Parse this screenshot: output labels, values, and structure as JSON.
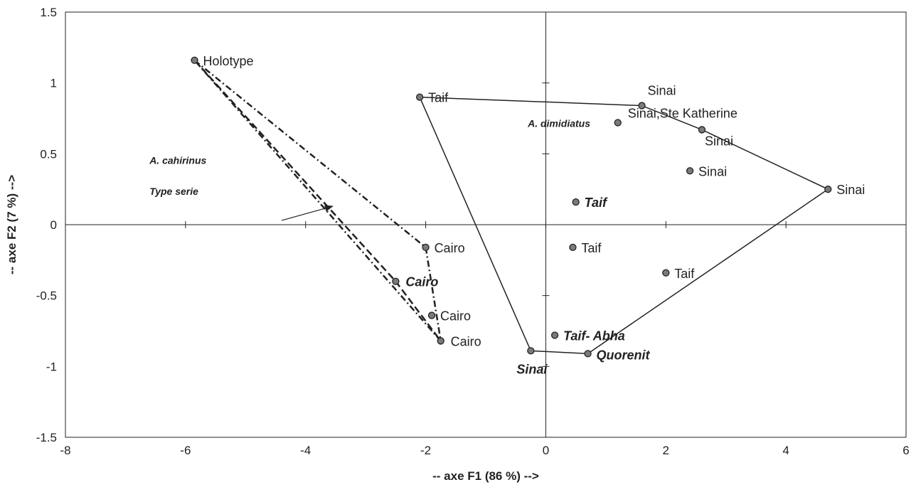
{
  "chart_data": {
    "type": "scatter",
    "xlabel": "-- axe F1 (86 %) -->",
    "ylabel": "-- axe F2 (7 %) -->",
    "xlim": [
      -8,
      6
    ],
    "ylim": [
      -1.5,
      1.5
    ],
    "xticks": [
      "-8",
      "-6",
      "-4",
      "-2",
      "0",
      "2",
      "4",
      "6"
    ],
    "yticks": [
      "1.5",
      "1",
      "0.5",
      "0",
      "-0.5",
      "-1",
      "-1.5"
    ],
    "points": [
      {
        "x": -5.85,
        "y": 1.16,
        "label": "Holotype",
        "style": "normal"
      },
      {
        "x": -2.1,
        "y": 0.9,
        "label": "Taif",
        "style": "normal"
      },
      {
        "x": 1.6,
        "y": 0.84,
        "label": "Sinai",
        "style": "normal"
      },
      {
        "x": 1.2,
        "y": 0.72,
        "label": "Sinai,Ste Katherine",
        "style": "normal"
      },
      {
        "x": 2.6,
        "y": 0.67,
        "label": "Sinai",
        "style": "normal"
      },
      {
        "x": 2.4,
        "y": 0.38,
        "label": "Sinai",
        "style": "normal"
      },
      {
        "x": 4.7,
        "y": 0.25,
        "label": "Sinai",
        "style": "normal"
      },
      {
        "x": 0.5,
        "y": 0.16,
        "label": "Taif",
        "style": "bold-italic"
      },
      {
        "x": -2.0,
        "y": -0.16,
        "label": "Cairo",
        "style": "normal"
      },
      {
        "x": 0.45,
        "y": -0.16,
        "label": "Taif",
        "style": "normal"
      },
      {
        "x": 2.0,
        "y": -0.34,
        "label": "Taif",
        "style": "normal"
      },
      {
        "x": -2.5,
        "y": -0.4,
        "label": "Cairo",
        "style": "bold-italic"
      },
      {
        "x": -1.9,
        "y": -0.64,
        "label": "Cairo",
        "style": "normal"
      },
      {
        "x": -1.75,
        "y": -0.82,
        "label": "Cairo",
        "style": "normal"
      },
      {
        "x": 0.15,
        "y": -0.78,
        "label": "Taif- Abha",
        "style": "bold-italic"
      },
      {
        "x": -0.25,
        "y": -0.89,
        "label": "Sinai",
        "style": "bold-italic"
      },
      {
        "x": 0.7,
        "y": -0.91,
        "label": "Quorenit",
        "style": "bold-italic"
      }
    ],
    "hull_dimidiatus": [
      [
        -2.1,
        0.9
      ],
      [
        1.6,
        0.84
      ],
      [
        2.6,
        0.67
      ],
      [
        4.7,
        0.25
      ],
      [
        0.7,
        -0.91
      ],
      [
        -0.25,
        -0.89
      ],
      [
        -2.1,
        0.9
      ]
    ],
    "hull_cahirinus_dashdot": [
      [
        -5.85,
        1.16
      ],
      [
        -2.0,
        -0.16
      ],
      [
        -1.75,
        -0.82
      ],
      [
        -5.85,
        1.16
      ]
    ],
    "hull_cahirinus_dashed": [
      [
        -5.85,
        1.16
      ],
      [
        -2.5,
        -0.4
      ],
      [
        -1.75,
        -0.82
      ]
    ],
    "annotations": [
      {
        "text": "A. dimidiatus",
        "x": -0.3,
        "y": 0.69
      },
      {
        "text": "A. cahirinus",
        "x": -6.6,
        "y": 0.43
      },
      {
        "text": "Type serie",
        "x": -6.6,
        "y": 0.21
      }
    ]
  }
}
